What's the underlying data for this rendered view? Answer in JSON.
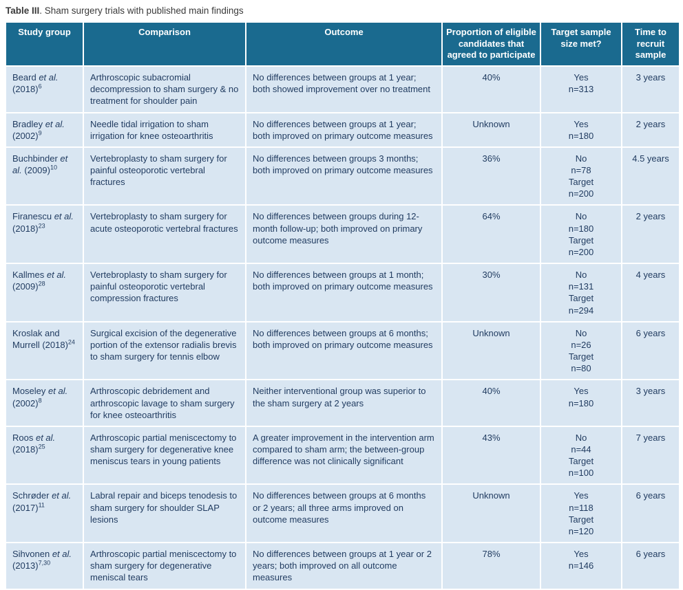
{
  "caption": {
    "label": "Table III",
    "text": ". Sham surgery trials with published main findings"
  },
  "colors": {
    "header_bg": "#1A6A8F",
    "row_bg": "#D9E6F2",
    "body_text": "#1F3A5F",
    "header_text": "#FFFFFF"
  },
  "table": {
    "headers": [
      "Study group",
      "Comparison",
      "Outcome",
      "Proportion of eligible candidates that agreed to participate",
      "Target sample size met?",
      "Time to recruit sample"
    ],
    "rows": [
      {
        "study_pre": "Beard ",
        "study_etal": "et al.",
        "study_post": " (2018)",
        "study_ref": "6",
        "comparison": "Arthroscopic subacromial decompression to sham surgery & no treatment for shoulder pain",
        "outcome": "No differences between groups at 1 year; both showed improvement over no treatment",
        "proportion": "40%",
        "sample": "Yes\nn=313",
        "time": "3 years"
      },
      {
        "study_pre": "Bradley ",
        "study_etal": "et al.",
        "study_post": " (2002)",
        "study_ref": "9",
        "comparison": "Needle tidal irrigation to sham irrigation for knee osteoarthritis",
        "outcome": "No differences between groups at 1 year; both improved on primary outcome measures",
        "proportion": "Unknown",
        "sample": "Yes\nn=180",
        "time": "2 years"
      },
      {
        "study_pre": "Buchbinder ",
        "study_etal": "et al.",
        "study_post": " (2009)",
        "study_ref": "10",
        "comparison": "Vertebroplasty to sham surgery for painful osteoporotic vertebral fractures",
        "outcome": "No differences between groups 3 months; both improved on primary outcome measures",
        "proportion": "36%",
        "sample": "No\nn=78\nTarget\nn=200",
        "time": "4.5 years"
      },
      {
        "study_pre": "Firanescu ",
        "study_etal": "et al.",
        "study_post": " (2018)",
        "study_ref": "23",
        "comparison": "Vertebroplasty to sham surgery for acute osteoporotic vertebral fractures",
        "outcome": "No differences between groups during 12-month follow-up; both improved on primary outcome measures",
        "proportion": "64%",
        "sample": "No\nn=180\nTarget\nn=200",
        "time": "2 years"
      },
      {
        "study_pre": "Kallmes ",
        "study_etal": "et al.",
        "study_post": " (2009)",
        "study_ref": "28",
        "comparison": "Vertebroplasty to sham surgery for painful osteoporotic vertebral compression fractures",
        "outcome": "No differences between groups at 1 month; both improved on primary outcome measures",
        "proportion": "30%",
        "sample": "No\nn=131\nTarget\nn=294",
        "time": "4 years"
      },
      {
        "study_pre": "Kroslak and Murrell ",
        "study_etal": "",
        "study_post": "(2018)",
        "study_ref": "24",
        "comparison": "Surgical excision of the degenerative portion of the extensor radialis brevis to sham surgery for tennis elbow",
        "outcome": "No differences between groups at 6 months; both improved on primary outcome measures",
        "proportion": "Unknown",
        "sample": "No\nn=26\nTarget\nn=80",
        "time": "6 years"
      },
      {
        "study_pre": "Moseley ",
        "study_etal": "et al.",
        "study_post": " (2002)",
        "study_ref": "8",
        "comparison": "Arthroscopic debridement and arthroscopic lavage to sham surgery for knee osteoarthritis",
        "outcome": "Neither interventional group was superior to the sham surgery at 2 years",
        "proportion": "40%",
        "sample": "Yes\nn=180",
        "time": "3 years"
      },
      {
        "study_pre": "Roos ",
        "study_etal": "et al.",
        "study_post": " (2018)",
        "study_ref": "25",
        "comparison": "Arthroscopic partial meniscectomy to sham surgery for degenerative knee meniscus tears in young patients",
        "outcome": "A greater improvement in the intervention arm compared to sham arm; the between-group difference was not clinically significant",
        "proportion": "43%",
        "sample": "No\nn=44\nTarget\nn=100",
        "time": "7 years"
      },
      {
        "study_pre": "Schrøder ",
        "study_etal": "et al.",
        "study_post": " (2017)",
        "study_ref": "11",
        "comparison": "Labral repair and biceps tenodesis to sham surgery for shoulder SLAP lesions",
        "outcome": "No differences between groups at 6 months or 2 years; all three arms improved on outcome measures",
        "proportion": "Unknown",
        "sample": "Yes\nn=118\nTarget\nn=120",
        "time": "6 years"
      },
      {
        "study_pre": "Sihvonen ",
        "study_etal": "et al.",
        "study_post": " (2013)",
        "study_ref": "7,30",
        "comparison": "Arthroscopic partial meniscectomy to sham surgery for degenerative meniscal tears",
        "outcome": "No differences between groups at 1 year or 2 years; both improved on all outcome measures",
        "proportion": "78%",
        "sample": "Yes\nn=146",
        "time": "6 years"
      }
    ]
  }
}
